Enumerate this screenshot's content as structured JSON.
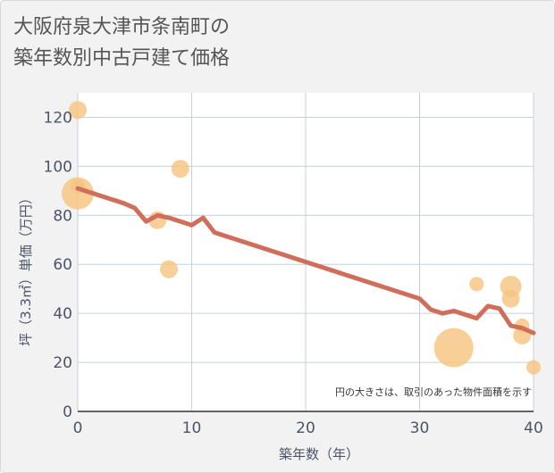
{
  "chart_data": {
    "type": "scatter",
    "title_lines": [
      "大阪府泉大津市条南町の",
      "築年数別中古戸建て価格"
    ],
    "xlabel": "築年数（年）",
    "ylabel": "坪（3.3㎡）単価（万円）",
    "xlim": [
      0,
      40
    ],
    "ylim": [
      0,
      130
    ],
    "xticks": [
      0,
      10,
      20,
      30,
      40
    ],
    "yticks": [
      0,
      20,
      40,
      60,
      80,
      100,
      120
    ],
    "grid": true,
    "note": "円の大きさは、取引のあった物件面積を示す",
    "colors": {
      "background": "#f2f2f2",
      "plot_background": "#ffffff",
      "grid": "#c5d0dc",
      "bubble": "#f5c480",
      "line": "#d06e5c"
    },
    "bubbles": [
      {
        "x": 0,
        "y": 123,
        "size": 4
      },
      {
        "x": 0,
        "y": 89,
        "size": 8
      },
      {
        "x": 0,
        "y": 92,
        "size": 3
      },
      {
        "x": 7,
        "y": 78,
        "size": 4
      },
      {
        "x": 8,
        "y": 58,
        "size": 4
      },
      {
        "x": 9,
        "y": 99,
        "size": 4
      },
      {
        "x": 33,
        "y": 26,
        "size": 10
      },
      {
        "x": 35,
        "y": 52,
        "size": 3
      },
      {
        "x": 38,
        "y": 51,
        "size": 5
      },
      {
        "x": 38,
        "y": 46,
        "size": 4
      },
      {
        "x": 39,
        "y": 35,
        "size": 3
      },
      {
        "x": 39,
        "y": 31,
        "size": 4
      },
      {
        "x": 40,
        "y": 18,
        "size": 3
      }
    ],
    "trend_line": {
      "x": [
        0,
        1,
        2,
        3,
        4,
        5,
        6,
        7,
        8,
        9,
        10,
        11,
        12,
        30,
        31,
        32,
        33,
        34,
        35,
        36,
        37,
        38,
        39,
        40
      ],
      "y": [
        91,
        89.5,
        88,
        86.5,
        85,
        83,
        77.5,
        80,
        79,
        77.5,
        76,
        79,
        73,
        46,
        41.5,
        40,
        41,
        39.5,
        38,
        43,
        42,
        35,
        34,
        32
      ]
    }
  }
}
